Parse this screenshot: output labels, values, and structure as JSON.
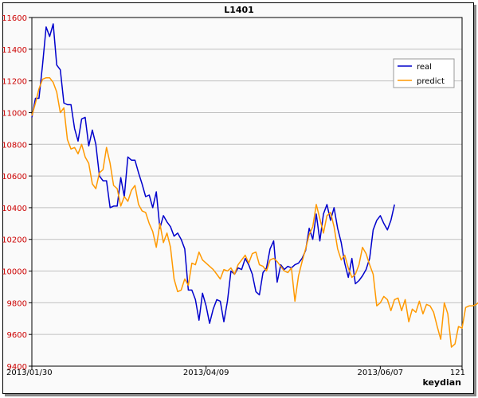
{
  "chart_data": {
    "type": "line",
    "title": "L1401",
    "xlabel": "keydian",
    "ylabel": "",
    "x_range": [
      0,
      121
    ],
    "ylim": [
      9400,
      11600
    ],
    "yticks": [
      9400,
      9600,
      9800,
      10000,
      10200,
      10400,
      10600,
      10800,
      11000,
      11200,
      11400,
      11600
    ],
    "xtick_labels": [
      {
        "x": 0,
        "label": "2013/01/30"
      },
      {
        "x": 49,
        "label": "2013/04/09"
      },
      {
        "x": 98,
        "label": "2013/06/07"
      },
      {
        "x": 121,
        "label": "121"
      }
    ],
    "grid": "horizontal",
    "legend_position": "top-right",
    "series": [
      {
        "name": "real",
        "color": "#0000cc",
        "values": [
          10970,
          11090,
          11090,
          11300,
          11540,
          11480,
          11560,
          11300,
          11270,
          11060,
          11050,
          11050,
          10900,
          10820,
          10960,
          10970,
          10790,
          10890,
          10800,
          10600,
          10570,
          10570,
          10400,
          10410,
          10410,
          10590,
          10470,
          10720,
          10700,
          10700,
          10620,
          10550,
          10470,
          10480,
          10400,
          10500,
          10270,
          10350,
          10310,
          10280,
          10220,
          10240,
          10200,
          10140,
          9880,
          9880,
          9820,
          9690,
          9860,
          9780,
          9670,
          9760,
          9820,
          9810,
          9680,
          9810,
          10000,
          9980,
          10020,
          10010,
          10080,
          10040,
          9980,
          9870,
          9850,
          9990,
          10020,
          10140,
          10190,
          9930,
          10040,
          10010,
          10030,
          10020,
          10040,
          10050,
          10080,
          10130,
          10270,
          10200,
          10360,
          10190,
          10360,
          10420,
          10320,
          10400,
          10270,
          10180,
          10050,
          9960,
          10080,
          9920,
          9940,
          9970,
          10010,
          10080,
          10260,
          10320,
          10350,
          10300,
          10260,
          10320,
          10420
        ]
      },
      {
        "name": "predict",
        "color": "#ff9900",
        "values": [
          10980,
          11060,
          11150,
          11210,
          11220,
          11220,
          11190,
          11130,
          11000,
          11030,
          10830,
          10770,
          10780,
          10740,
          10800,
          10720,
          10680,
          10550,
          10520,
          10620,
          10640,
          10780,
          10680,
          10540,
          10520,
          10410,
          10470,
          10440,
          10510,
          10540,
          10420,
          10380,
          10370,
          10300,
          10250,
          10150,
          10300,
          10180,
          10240,
          10150,
          9950,
          9870,
          9880,
          9950,
          9910,
          10050,
          10040,
          10120,
          10070,
          10050,
          10030,
          10010,
          9980,
          9950,
          10010,
          10000,
          10020,
          9980,
          10040,
          10070,
          10100,
          10050,
          10110,
          10120,
          10040,
          10030,
          10000,
          10070,
          10080,
          10060,
          10030,
          10000,
          9990,
          10020,
          9810,
          9970,
          10060,
          10140,
          10230,
          10280,
          10420,
          10330,
          10240,
          10350,
          10370,
          10280,
          10140,
          10070,
          10100,
          10020,
          9960,
          9980,
          10040,
          10150,
          10110,
          10040,
          9980,
          9780,
          9800,
          9840,
          9820,
          9750,
          9820,
          9830,
          9750,
          9820,
          9680,
          9760,
          9740,
          9810,
          9730,
          9790,
          9780,
          9740,
          9650,
          9570,
          9800,
          9730,
          9520,
          9540,
          9650,
          9640,
          9770,
          9780,
          9780,
          9790,
          9810,
          9800
        ]
      }
    ]
  }
}
